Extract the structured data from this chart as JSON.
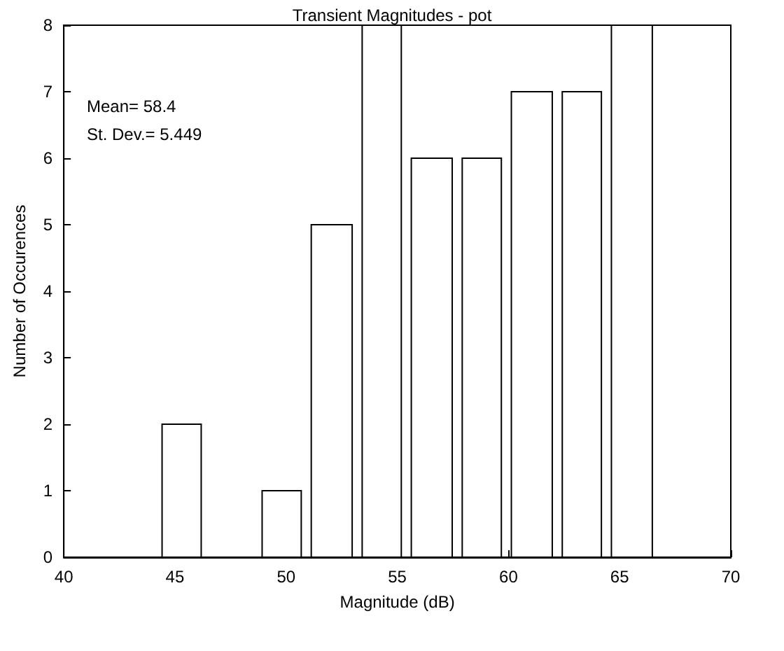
{
  "chart_data": {
    "type": "histogram",
    "title": "Transient Magnitudes - pot",
    "xlabel": "Magnitude (dB)",
    "ylabel": "Number of Occurences",
    "bins": [
      44.2,
      46.4,
      48.7,
      50.9,
      53.2,
      55.4,
      57.7,
      59.9,
      62.2,
      64.4,
      66.7
    ],
    "values": [
      2,
      0,
      1,
      5,
      8,
      6,
      6,
      7,
      7,
      8
    ],
    "color": "#ffffff",
    "xlim": [
      40,
      70
    ],
    "xticks": [
      40,
      45,
      50,
      55,
      60,
      65,
      70
    ],
    "ylim": [
      0,
      8
    ],
    "yticks": [
      0,
      1,
      2,
      3,
      4,
      5,
      6,
      7,
      8
    ],
    "annotations": [
      "Mean= 58.4",
      "St. Dev.= 5.449"
    ],
    "grid": false
  }
}
